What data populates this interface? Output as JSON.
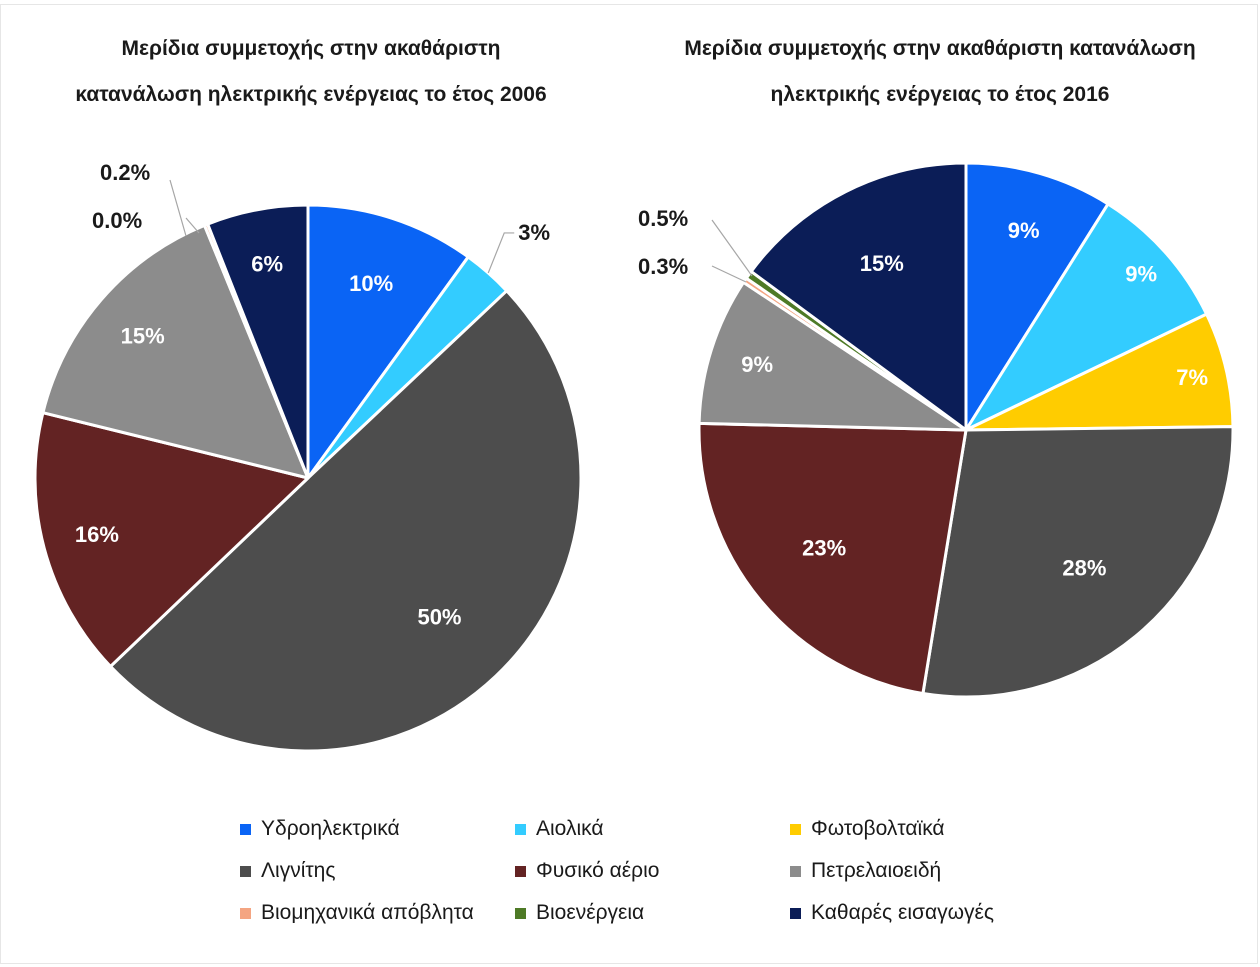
{
  "chart_data": [
    {
      "type": "pie",
      "title_lines": [
        "Μερίδια συμμετοχής στην ακαθάριστη",
        "κατανάλωση ηλεκτρικής ενέργειας το έτος 2006"
      ],
      "slices": [
        {
          "name": "Υδροηλεκτρικά",
          "value": 10,
          "label": "10%"
        },
        {
          "name": "Αιολικά",
          "value": 3,
          "label": "3%"
        },
        {
          "name": "Λιγνίτης",
          "value": 50,
          "label": "50%"
        },
        {
          "name": "Φυσικό αέριο",
          "value": 16,
          "label": "16%"
        },
        {
          "name": "Πετρελαιοειδή",
          "value": 15,
          "label": "15%"
        },
        {
          "name": "Βιομηχανικά απόβλητα",
          "value": 0.2,
          "label": "0.2%"
        },
        {
          "name": "Βιοενέργεια",
          "value": 0.0,
          "label": "0.0%"
        },
        {
          "name": "Καθαρές εισαγωγές",
          "value": 6,
          "label": "6%"
        }
      ]
    },
    {
      "type": "pie",
      "title_lines": [
        "Μερίδια συμμετοχής στην ακαθάριστη κατανάλωση",
        "ηλεκτρικής ενέργειας το έτος 2016"
      ],
      "slices": [
        {
          "name": "Υδροηλεκτρικά",
          "value": 9,
          "label": "9%"
        },
        {
          "name": "Αιολικά",
          "value": 9,
          "label": "9%"
        },
        {
          "name": "Φωτοβολταϊκά",
          "value": 7,
          "label": "7%"
        },
        {
          "name": "Λιγνίτης",
          "value": 28,
          "label": "28%"
        },
        {
          "name": "Φυσικό αέριο",
          "value": 23,
          "label": "23%"
        },
        {
          "name": "Πετρελαιοειδή",
          "value": 9,
          "label": "9%"
        },
        {
          "name": "Βιομηχανικά απόβλητα",
          "value": 0.3,
          "label": "0.3%"
        },
        {
          "name": "Βιοενέργεια",
          "value": 0.5,
          "label": "0.5%"
        },
        {
          "name": "Καθαρές εισαγωγές",
          "value": 15,
          "label": "15%"
        }
      ]
    }
  ],
  "colors": {
    "Υδροηλεκτρικά": "#0a64f5",
    "Αιολικά": "#33ccff",
    "Φωτοβολταϊκά": "#ffcc00",
    "Λιγνίτης": "#4d4d4d",
    "Φυσικό αέριο": "#632323",
    "Πετρελαιοειδή": "#8c8c8c",
    "Βιομηχανικά απόβλητα": "#f4a582",
    "Βιοενέργεια": "#4e7a26",
    "Καθαρές εισαγωγές": "#0b1d57"
  },
  "legend": [
    "Υδροηλεκτρικά",
    "Αιολικά",
    "Φωτοβολταϊκά",
    "Λιγνίτης",
    "Φυσικό αέριο",
    "Πετρελαιοειδή",
    "Βιομηχανικά απόβλητα",
    "Βιοενέργεια",
    "Καθαρές εισαγωγές"
  ]
}
